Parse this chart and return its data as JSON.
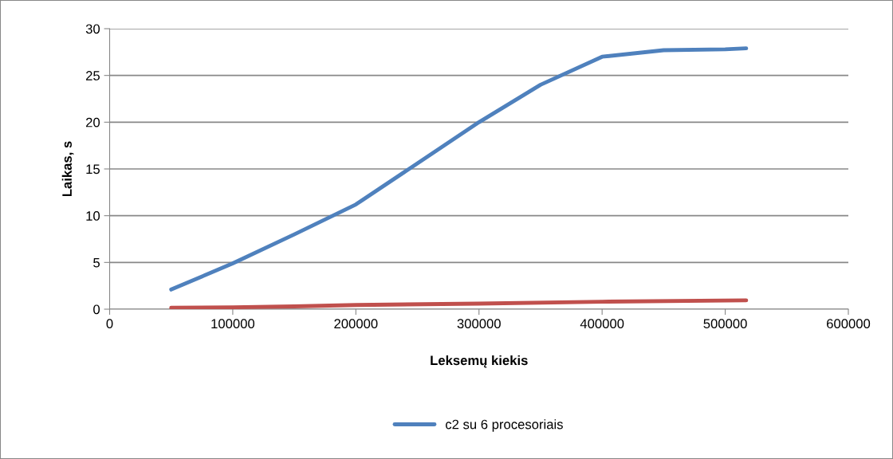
{
  "chart_data": {
    "type": "line",
    "xlabel": "Leksemų kiekis",
    "ylabel": "Laikas, s",
    "series": [
      {
        "name": "c2 su 6 procesoriais",
        "color": "#4f81bd",
        "x": [
          50000,
          100000,
          150000,
          200000,
          250000,
          300000,
          350000,
          400000,
          450000,
          500000,
          517000
        ],
        "values": [
          2.1,
          4.9,
          8.0,
          11.2,
          15.6,
          20.0,
          24.0,
          27.0,
          27.7,
          27.8,
          27.9
        ]
      },
      {
        "color": "#c0504d",
        "x": [
          50000,
          100000,
          150000,
          200000,
          300000,
          400000,
          517000
        ],
        "values": [
          0.15,
          0.2,
          0.3,
          0.45,
          0.6,
          0.8,
          0.95
        ]
      }
    ],
    "xlim": [
      0,
      600000
    ],
    "xticks": [
      0,
      100000,
      200000,
      300000,
      400000,
      500000,
      600000
    ],
    "ylim": [
      0,
      30
    ],
    "yticks": [
      0,
      5,
      10,
      15,
      20,
      25,
      30
    ],
    "grid": "y",
    "legend": "bottom",
    "marker": "none",
    "line_style": "solid"
  }
}
